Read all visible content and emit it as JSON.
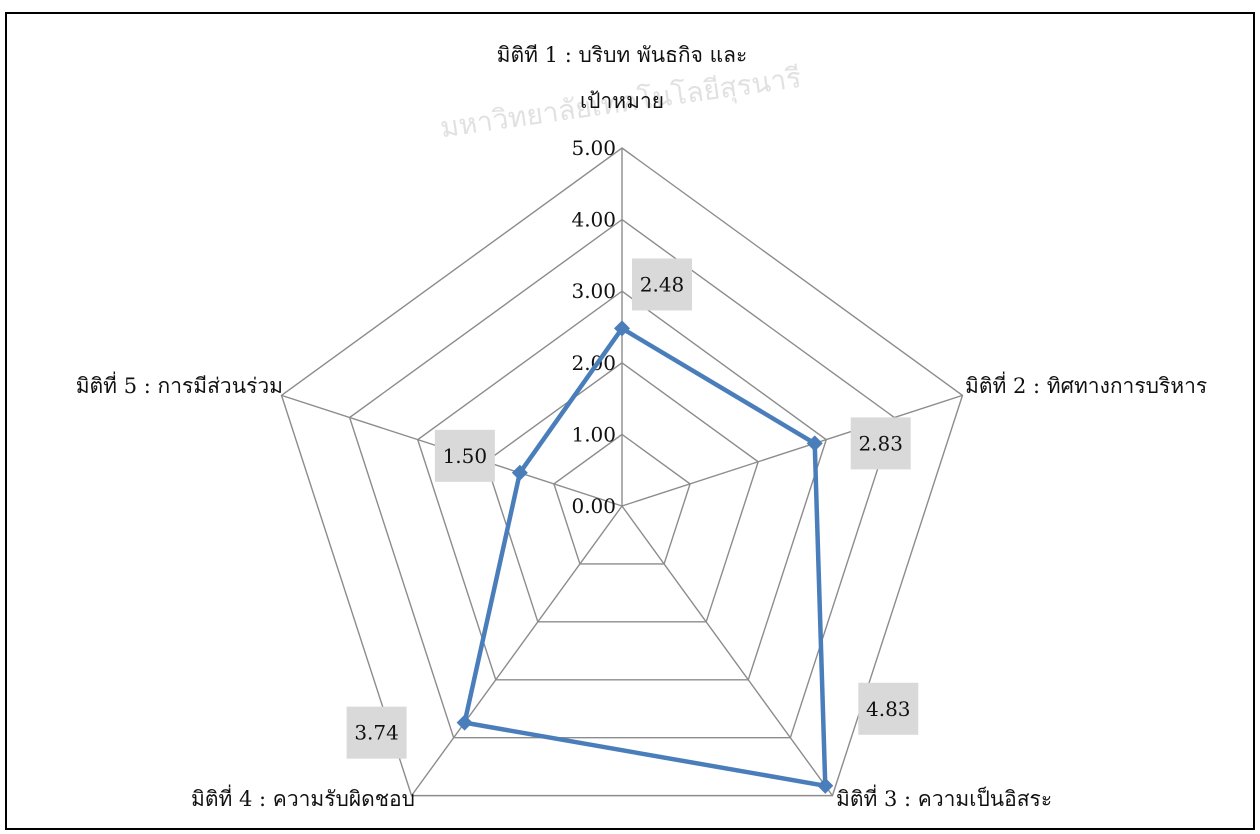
{
  "chart_data": {
    "type": "radar",
    "title": "",
    "axes": [
      "มิติที 1 : บริบท พันธกิจ และ\nเป้าหมาย",
      "มิติที่ 2 :  ทิศทางการบริหาร",
      "มิติที่ 3 : ความเป็นอิสระ",
      "มิติที่ 4 : ความรับผิดชอบ",
      "มิติที่ 5 : การมีส่วนร่วม"
    ],
    "series": [
      {
        "values": [
          2.48,
          2.83,
          4.83,
          3.74,
          1.5
        ],
        "data_labels": [
          "2.48",
          "2.83",
          "4.83",
          "3.74",
          "1.50"
        ]
      }
    ],
    "r_ticks": [
      "0.00",
      "1.00",
      "2.00",
      "3.00",
      "4.00",
      "5.00"
    ],
    "rlim": [
      0,
      5
    ],
    "grid": true,
    "legend": "none",
    "colors": {
      "series_line": "#4a7ebb",
      "gridline": "#8c8c8c",
      "label_box": "#d9d9d9"
    }
  },
  "watermark": {
    "text": "มหาวิทยาลัยเทคโนโลยีสุรนารี"
  }
}
